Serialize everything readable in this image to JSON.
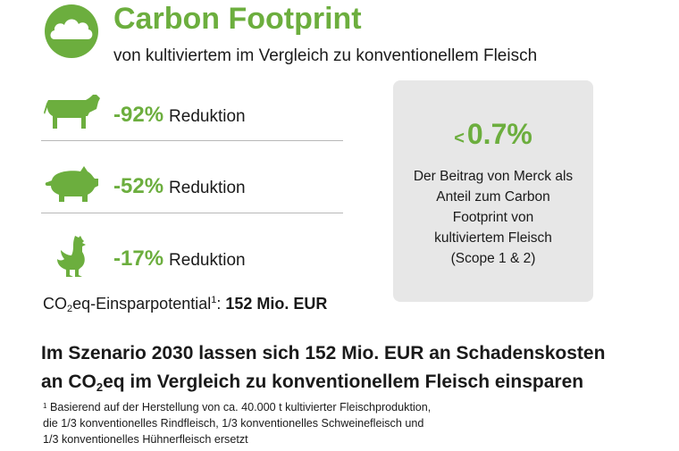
{
  "header": {
    "title": "Carbon Footprint",
    "subtitle": "von kultiviertem im Vergleich zu konventionellem Fleisch"
  },
  "rows": [
    {
      "icon": "cow-icon",
      "value": "-92%",
      "label": "Reduktion"
    },
    {
      "icon": "pig-icon",
      "value": "-52%",
      "label": "Reduktion"
    },
    {
      "icon": "chicken-icon",
      "value": "-17%",
      "label": "Reduktion"
    }
  ],
  "potential": {
    "prefix": "CO",
    "sub": "2",
    "middle": "eq-Einsparpotential",
    "sup": "1",
    "colon": ": ",
    "value": "152 Mio. EUR"
  },
  "merck_box": {
    "lt": "<",
    "value": "0.7%",
    "lines": [
      "Der Beitrag von Merck als",
      "Anteil zum Carbon",
      "Footprint von",
      "kultiviertem Fleisch",
      "(Scope 1 & 2)"
    ]
  },
  "headline": {
    "line1": "Im Szenario 2030 lassen sich 152 Mio. EUR an Schadenskosten",
    "line2_pre": "an CO",
    "line2_sub": "2",
    "line2_post": "eq im Vergleich zu konventionellem Fleisch einsparen"
  },
  "footnote": {
    "marker": "1",
    "lines": [
      " Basierend auf der  Herstellung von ca. 40.000 t kultivierter Fleischproduktion,",
      "die 1/3 konventionelles Rindfleisch, 1/3 konventionelles Schweinefleisch und",
      "1/3 konventionelles Hühnerfleisch ersetzt"
    ]
  },
  "colors": {
    "accent": "#6cae3e",
    "box_bg": "#e7e7e7",
    "text": "#1a1a1a"
  }
}
